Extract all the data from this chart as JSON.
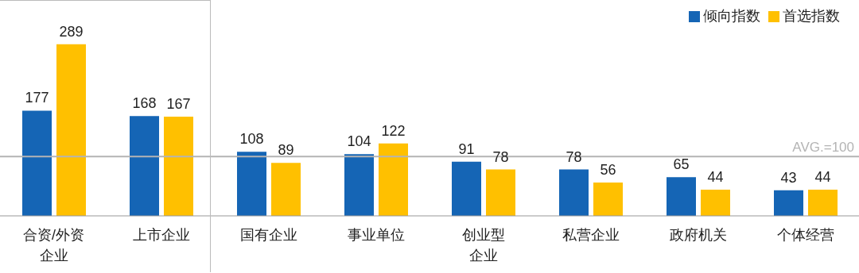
{
  "chart_data": {
    "type": "bar",
    "categories": [
      "合资/外资企业",
      "上市企业",
      "国有企业",
      "事业单位",
      "创业型企业",
      "私营企业",
      "政府机关",
      "个体经营"
    ],
    "series": [
      {
        "name": "倾向指数",
        "color": "#1565b5",
        "values": [
          177,
          168,
          108,
          104,
          91,
          78,
          65,
          43
        ]
      },
      {
        "name": "首选指数",
        "color": "#ffc000",
        "values": [
          289,
          167,
          89,
          122,
          78,
          56,
          44,
          44
        ]
      }
    ],
    "data_labels": true,
    "legend": "top right",
    "grid": false,
    "ref_lines": [
      {
        "axis": "y",
        "value": 100,
        "label": "AVG.=100",
        "color": "#b4b4b4"
      }
    ]
  }
}
